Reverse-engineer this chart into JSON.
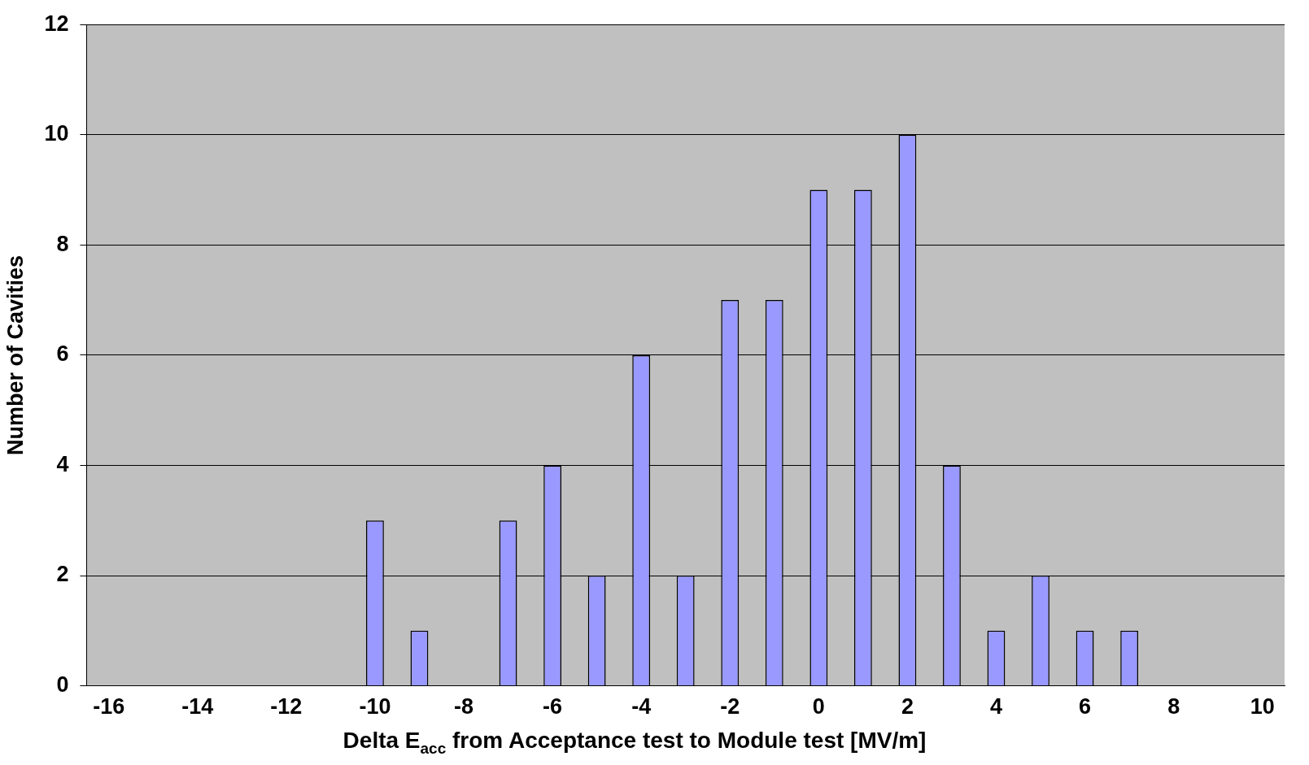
{
  "chart_data": {
    "type": "bar",
    "xlabel": "Delta E$_{acc}$ from Acceptance test to Module test [MV/m]",
    "ylabel": "Number of Cavities",
    "categories": [
      "-16",
      null,
      "-14",
      null,
      "-12",
      null,
      "-10",
      null,
      "-8",
      null,
      "-6",
      null,
      "-4",
      null,
      "-2",
      null,
      "0",
      null,
      "2",
      null,
      "4",
      null,
      "6",
      null,
      "8",
      null,
      "10"
    ],
    "values": [
      0,
      0,
      0,
      0,
      0,
      0,
      3,
      1,
      0,
      3,
      4,
      2,
      6,
      2,
      7,
      7,
      9,
      9,
      10,
      4,
      1,
      2,
      1,
      1,
      0,
      0,
      0
    ],
    "color": "#9999ff",
    "ylim": [
      0,
      12
    ],
    "yticks": [
      0,
      2,
      4,
      6,
      8,
      10,
      12
    ],
    "grid": "y",
    "legend": false
  }
}
